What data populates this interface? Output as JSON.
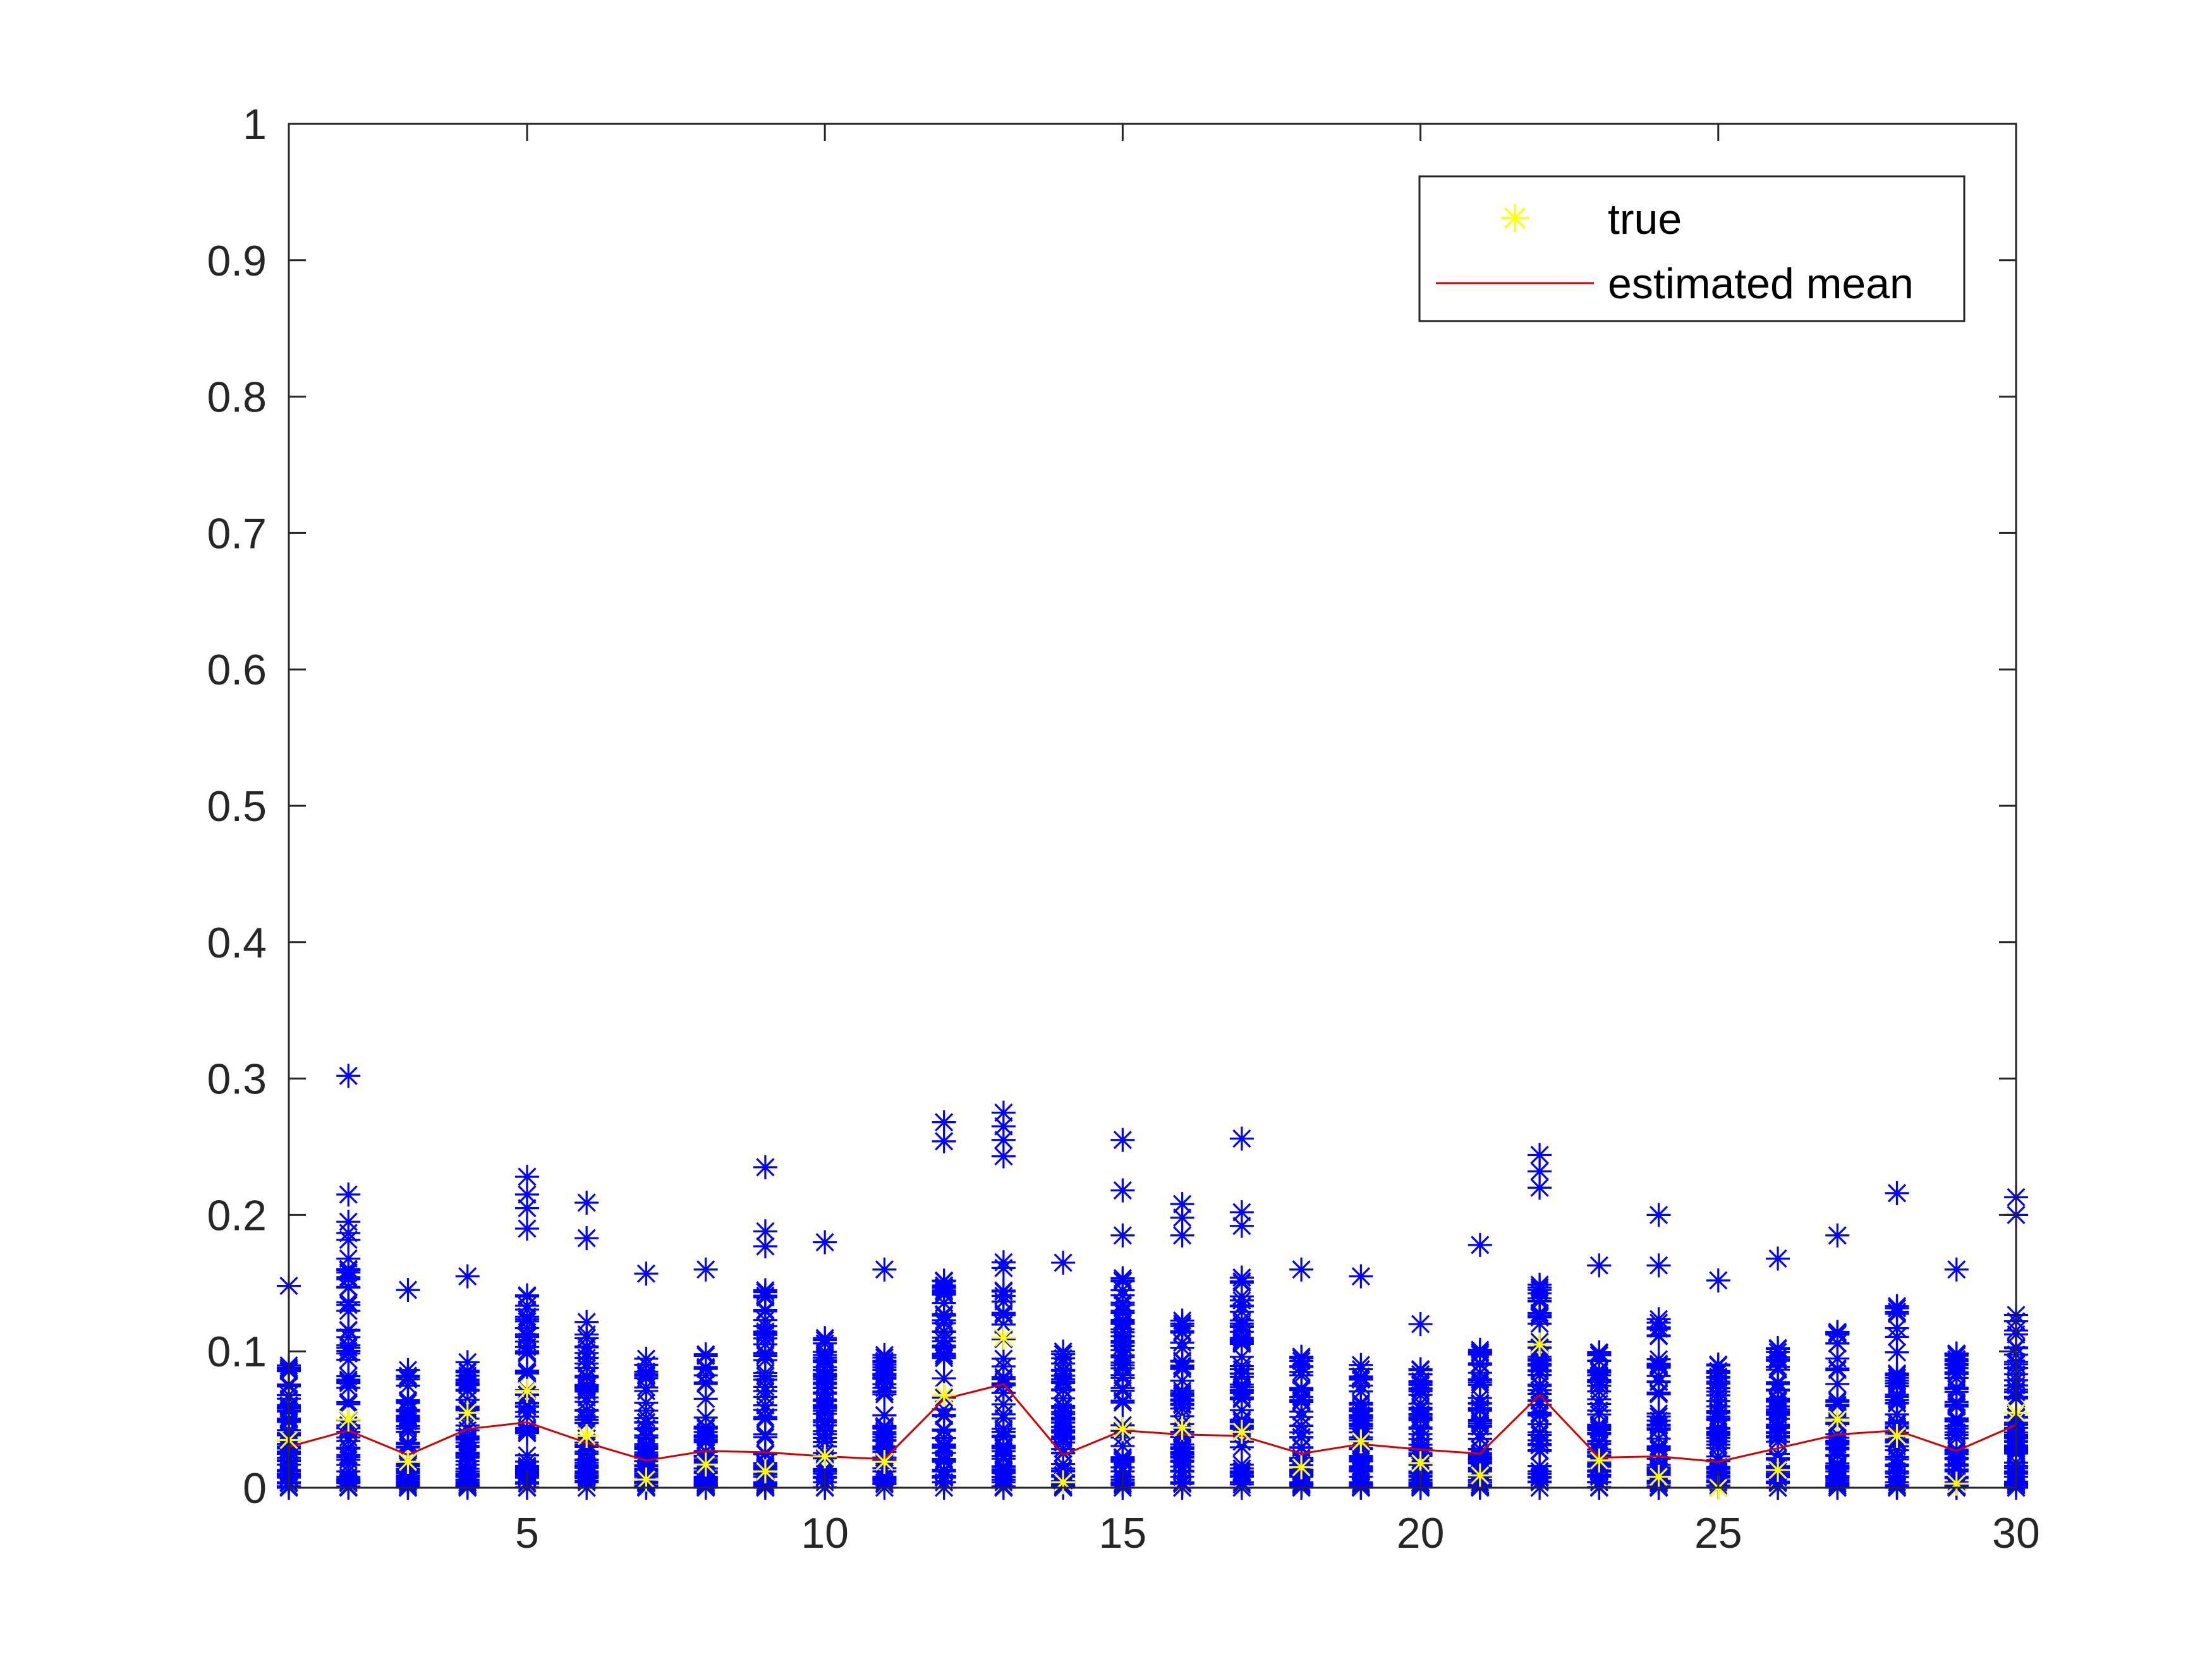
{
  "chart_data": {
    "type": "scatter",
    "title": "",
    "xlabel": "",
    "ylabel": "",
    "xlim": [
      1,
      30
    ],
    "ylim": [
      0,
      1
    ],
    "xticks": [
      5,
      10,
      15,
      20,
      25,
      30
    ],
    "xtick_labels": [
      "5",
      "10",
      "15",
      "20",
      "25",
      "30"
    ],
    "yticks": [
      0,
      0.1,
      0.2,
      0.3,
      0.4,
      0.5,
      0.6,
      0.7,
      0.8,
      0.9,
      1
    ],
    "ytick_labels": [
      "0",
      "0.1",
      "0.2",
      "0.3",
      "0.4",
      "0.5",
      "0.6",
      "0.7",
      "0.8",
      "0.9",
      "1"
    ],
    "grid": false,
    "legend": {
      "location": "top-right",
      "entries": [
        {
          "label": "true",
          "marker": "asterisk",
          "color": "#ffff00"
        },
        {
          "label": "estimated mean",
          "marker": "line",
          "color": "#d40000"
        }
      ]
    },
    "samples": {
      "marker": "asterisk",
      "color": "#0000ff",
      "x": [
        1,
        2,
        3,
        4,
        5,
        6,
        7,
        8,
        9,
        10,
        11,
        12,
        13,
        14,
        15,
        16,
        17,
        18,
        19,
        20,
        21,
        22,
        23,
        24,
        25,
        26,
        27,
        28,
        29,
        30
      ],
      "max": [
        0.148,
        0.302,
        0.145,
        0.155,
        0.228,
        0.209,
        0.157,
        0.16,
        0.235,
        0.18,
        0.16,
        0.268,
        0.275,
        0.165,
        0.255,
        0.208,
        0.256,
        0.16,
        0.155,
        0.12,
        0.178,
        0.244,
        0.163,
        0.2,
        0.152,
        0.168,
        0.185,
        0.216,
        0.16,
        0.213
      ],
      "outliers": [
        [
          0.148
        ],
        [
          0.302,
          0.215,
          0.195
        ],
        [
          0.145
        ],
        [
          0.155
        ],
        [
          0.228,
          0.215,
          0.205,
          0.19
        ],
        [
          0.209,
          0.183
        ],
        [
          0.157
        ],
        [
          0.16
        ],
        [
          0.235,
          0.188,
          0.177
        ],
        [
          0.18
        ],
        [
          0.16
        ],
        [
          0.268,
          0.254
        ],
        [
          0.275,
          0.265,
          0.255,
          0.243
        ],
        [
          0.165
        ],
        [
          0.255,
          0.218,
          0.185
        ],
        [
          0.208,
          0.198,
          0.185
        ],
        [
          0.256,
          0.202,
          0.192
        ],
        [
          0.16
        ],
        [
          0.155
        ],
        [
          0.12
        ],
        [
          0.178
        ],
        [
          0.244,
          0.232,
          0.22
        ],
        [
          0.163
        ],
        [
          0.2,
          0.163
        ],
        [
          0.152
        ],
        [
          0.168
        ],
        [
          0.185
        ],
        [
          0.216
        ],
        [
          0.16
        ],
        [
          0.213,
          0.2
        ]
      ]
    },
    "series": [
      {
        "name": "true",
        "marker": "asterisk",
        "color": "#ffff00",
        "x": [
          1,
          2,
          3,
          4,
          5,
          6,
          7,
          8,
          9,
          10,
          11,
          12,
          13,
          14,
          15,
          16,
          17,
          18,
          19,
          20,
          21,
          22,
          23,
          24,
          25,
          26,
          27,
          28,
          29,
          30
        ],
        "y": [
          0.035,
          0.05,
          0.019,
          0.055,
          0.071,
          0.038,
          0.006,
          0.017,
          0.012,
          0.023,
          0.019,
          0.068,
          0.11,
          0.004,
          0.043,
          0.044,
          0.041,
          0.015,
          0.034,
          0.018,
          0.009,
          0.105,
          0.02,
          0.008,
          0.0,
          0.013,
          0.05,
          0.038,
          0.003,
          0.055
        ]
      },
      {
        "name": "estimated mean",
        "marker": "line",
        "color": "#d40000",
        "x": [
          1,
          2,
          3,
          4,
          5,
          6,
          7,
          8,
          9,
          10,
          11,
          12,
          13,
          14,
          15,
          16,
          17,
          18,
          19,
          20,
          21,
          22,
          23,
          24,
          25,
          26,
          27,
          28,
          29,
          30
        ],
        "y": [
          0.03,
          0.042,
          0.024,
          0.043,
          0.048,
          0.033,
          0.02,
          0.027,
          0.026,
          0.023,
          0.021,
          0.065,
          0.076,
          0.024,
          0.042,
          0.039,
          0.038,
          0.025,
          0.032,
          0.028,
          0.025,
          0.068,
          0.022,
          0.023,
          0.019,
          0.029,
          0.039,
          0.042,
          0.027,
          0.046
        ]
      }
    ]
  }
}
